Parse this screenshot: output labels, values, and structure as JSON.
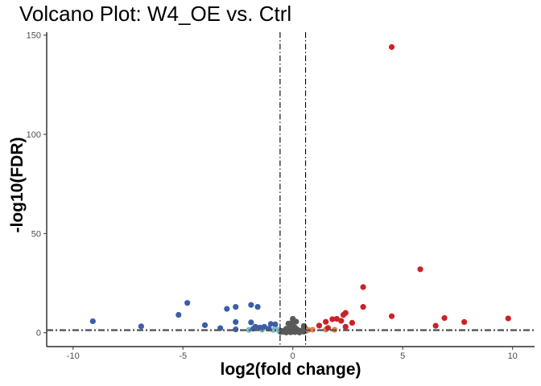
{
  "chart_data": {
    "type": "scatter",
    "title": "Volcano Plot: W4_OE vs. Ctrl",
    "xlabel": "log2(fold change)",
    "ylabel": "-log10(FDR)",
    "xlim": [
      -11.2,
      11.0
    ],
    "ylim": [
      -7.0,
      151.5
    ],
    "xticks": [
      -10,
      -5,
      0,
      5,
      10
    ],
    "yticks": [
      0,
      50,
      100,
      150
    ],
    "grid": false,
    "legend": "none",
    "thresholds": {
      "vertical": [
        -0.58,
        0.58
      ],
      "horizontal": 1.3
    },
    "colors": {
      "down_strong": "#3a5fa8",
      "down_weak": "#7fb9c9",
      "not_significant": "#5a5a5a",
      "up_weak": "#e8834a",
      "up_strong": "#cc2127"
    },
    "series": [
      {
        "key": "down_strong",
        "points": [
          [
            -9.1,
            5.8
          ],
          [
            -6.9,
            3.2
          ],
          [
            -5.2,
            9.0
          ],
          [
            -4.8,
            15.0
          ],
          [
            -4.0,
            3.8
          ],
          [
            -3.3,
            2.3
          ],
          [
            -3.0,
            12.0
          ],
          [
            -2.6,
            13.0
          ],
          [
            -2.6,
            5.4
          ],
          [
            -2.6,
            1.7
          ],
          [
            -1.9,
            14.0
          ],
          [
            -1.6,
            13.0
          ],
          [
            -1.9,
            5.2
          ],
          [
            -1.7,
            3.0
          ],
          [
            -1.5,
            2.6
          ],
          [
            -1.3,
            3.0
          ],
          [
            -1.0,
            4.4
          ],
          [
            -0.8,
            4.2
          ],
          [
            -1.8,
            2.0
          ],
          [
            -1.1,
            2.0
          ]
        ]
      },
      {
        "key": "down_weak",
        "points": [
          [
            -2.0,
            1.4
          ],
          [
            -1.4,
            1.5
          ],
          [
            -0.9,
            1.4
          ],
          [
            -0.7,
            1.5
          ]
        ]
      },
      {
        "key": "up_weak",
        "points": [
          [
            0.7,
            1.4
          ],
          [
            0.9,
            1.5
          ],
          [
            1.5,
            1.6
          ],
          [
            1.9,
            1.5
          ]
        ]
      },
      {
        "key": "up_strong",
        "points": [
          [
            4.5,
            144.0
          ],
          [
            5.8,
            32.0
          ],
          [
            3.2,
            23.0
          ],
          [
            3.2,
            13.0
          ],
          [
            2.4,
            10.0
          ],
          [
            2.3,
            9.0
          ],
          [
            4.5,
            8.3
          ],
          [
            6.9,
            7.4
          ],
          [
            9.8,
            7.2
          ],
          [
            2.0,
            7.0
          ],
          [
            1.8,
            6.8
          ],
          [
            2.2,
            6.0
          ],
          [
            1.5,
            5.5
          ],
          [
            7.8,
            5.4
          ],
          [
            2.7,
            5.0
          ],
          [
            1.2,
            3.6
          ],
          [
            6.5,
            3.5
          ],
          [
            2.4,
            3.0
          ],
          [
            1.6,
            2.4
          ]
        ]
      },
      {
        "key": "not_significant",
        "points": [
          [
            0.0,
            7.0
          ],
          [
            0.0,
            6.0
          ],
          [
            0.0,
            5.0
          ],
          [
            0.0,
            4.3
          ],
          [
            0.0,
            3.6
          ],
          [
            0.0,
            3.0
          ],
          [
            0.0,
            2.5
          ],
          [
            0.0,
            2.0
          ],
          [
            0.0,
            1.5
          ],
          [
            0.0,
            1.0
          ],
          [
            0.0,
            0.5
          ],
          [
            -0.3,
            2.0
          ],
          [
            -0.2,
            1.2
          ],
          [
            -0.5,
            0.9
          ],
          [
            -0.4,
            0.4
          ],
          [
            0.2,
            1.6
          ],
          [
            0.3,
            0.8
          ],
          [
            0.5,
            0.5
          ],
          [
            0.4,
            1.1
          ],
          [
            -0.1,
            0.2
          ],
          [
            0.1,
            0.3
          ],
          [
            -0.6,
            1.1
          ],
          [
            0.6,
            1.0
          ],
          [
            -0.3,
            0.1
          ],
          [
            0.3,
            0.1
          ],
          [
            -0.1,
            3.3
          ],
          [
            0.1,
            2.6
          ],
          [
            -0.2,
            4.6
          ],
          [
            0.15,
            5.6
          ],
          [
            0.55,
            2.4
          ],
          [
            -0.55,
            0.3
          ],
          [
            0.5,
            3.4
          ],
          [
            -0.25,
            0.6
          ],
          [
            0.25,
            0.5
          ]
        ]
      }
    ]
  }
}
